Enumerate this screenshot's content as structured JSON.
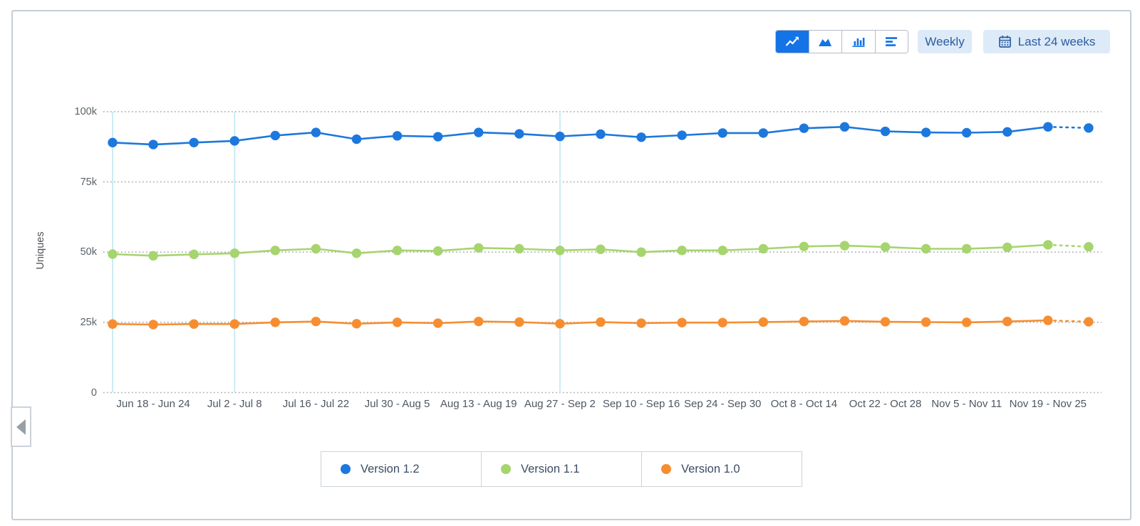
{
  "toolbar": {
    "chart_type_group": [
      {
        "icon": "line-chart-icon",
        "selected": true
      },
      {
        "icon": "area-chart-icon",
        "selected": false
      },
      {
        "icon": "bar-chart-icon",
        "selected": false
      },
      {
        "icon": "horizontal-bars-icon",
        "selected": false
      }
    ],
    "granularity_label": "Weekly",
    "date_range_label": "Last 24 weeks",
    "date_range_icon": "calendar-icon"
  },
  "colors": {
    "accent_blue": "#1473e6",
    "pill_bg": "#ddeaf8",
    "pill_text": "#2a5d9e",
    "gridline": "#9d9d9d",
    "marker_line": "#c9ecf4",
    "axis_text": "#4e5760",
    "legend_text": "#3b4c63"
  },
  "chart_data": {
    "type": "line",
    "title": "",
    "ylabel": "Uniques",
    "xlabel": "",
    "ylim": [
      0,
      100000
    ],
    "ytick_labels": [
      "100k",
      "75k",
      "50k",
      "25k",
      "0"
    ],
    "ytick_values": [
      100000,
      75000,
      50000,
      25000,
      0
    ],
    "grid": "dotted-horizontal",
    "legend_position": "bottom",
    "granularity": "Weekly",
    "range": "Last 24 weeks",
    "n_points": 25,
    "last_point_provisional": true,
    "vertical_marker_indices": [
      0,
      3,
      11
    ],
    "x_tick_point_indices": [
      1,
      3,
      5,
      7,
      9,
      11,
      13,
      15,
      17,
      19,
      21,
      23
    ],
    "x_tick_labels": [
      "Jun 18 - Jun 24",
      "Jul 2 - Jul 8",
      "Jul 16 - Jul 22",
      "Jul 30 - Aug 5",
      "Aug 13 - Aug 19",
      "Aug 27 - Sep 2",
      "Sep 10 - Sep 16",
      "Sep 24 - Sep 30",
      "Oct 8 - Oct 14",
      "Oct 22 - Oct 28",
      "Nov 5 - Nov 11",
      "Nov 19 - Nov 25"
    ],
    "series": [
      {
        "name": "Version 1.2",
        "color": "#1c78dd",
        "values": [
          89000,
          88300,
          89000,
          89600,
          91500,
          92600,
          90200,
          91400,
          91100,
          92600,
          92100,
          91200,
          92000,
          90900,
          91600,
          92400,
          92400,
          94100,
          94600,
          93000,
          92600,
          92500,
          92800,
          94600,
          94200
        ]
      },
      {
        "name": "Version 1.1",
        "color": "#a6d46e",
        "values": [
          49300,
          48700,
          49200,
          49600,
          50600,
          51200,
          49600,
          50600,
          50400,
          51500,
          51200,
          50600,
          51000,
          50000,
          50600,
          50600,
          51200,
          52000,
          52300,
          51800,
          51200,
          51200,
          51700,
          52600,
          51900
        ]
      },
      {
        "name": "Version 1.0",
        "color": "#f68e31",
        "values": [
          24400,
          24200,
          24400,
          24400,
          25000,
          25300,
          24500,
          25000,
          24700,
          25300,
          25100,
          24500,
          25100,
          24700,
          24900,
          24900,
          25100,
          25300,
          25500,
          25200,
          25100,
          25000,
          25300,
          25700,
          25200
        ]
      }
    ]
  }
}
